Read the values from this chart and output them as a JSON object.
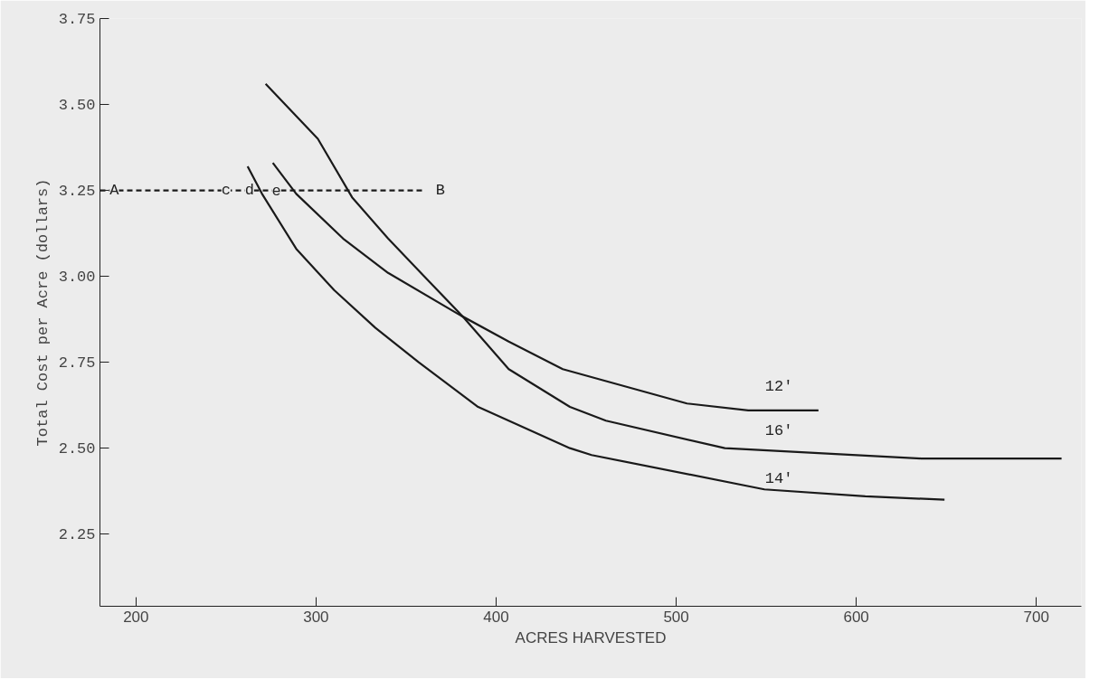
{
  "chart_data": {
    "type": "line",
    "xlabel": "ACRES HARVESTED",
    "ylabel": "Total Cost per Acre (dollars)",
    "xlim": [
      180,
      725
    ],
    "xticks": [
      200,
      300,
      400,
      500,
      600,
      700
    ],
    "ylim": [
      2.04,
      3.75
    ],
    "yticks": [
      2.25,
      {
        "value": 2.5,
        "label": "2.50"
      },
      2.75,
      {
        "value": 3.0,
        "label": "3.00"
      },
      3.25,
      {
        "value": 3.5,
        "label": "3.50"
      },
      3.75
    ],
    "grid": false,
    "marker": "none",
    "line_style": "solid",
    "series": [
      {
        "color": "#1a1a1a",
        "x": [
          262,
          270,
          289,
          310,
          333,
          357,
          390,
          441,
          453,
          549,
          605,
          649
        ],
        "values": [
          3.32,
          3.24,
          3.08,
          2.96,
          2.85,
          2.75,
          2.62,
          2.5,
          2.48,
          2.38,
          2.36,
          2.35
        ]
      },
      {
        "color": "#1a1a1a",
        "x": [
          276,
          289,
          315,
          340,
          379,
          407,
          437,
          506,
          540,
          579
        ],
        "values": [
          3.33,
          3.24,
          3.11,
          3.01,
          2.89,
          2.81,
          2.73,
          2.63,
          2.61,
          2.61
        ]
      },
      {
        "color": "#1a1a1a",
        "x": [
          272,
          301,
          320,
          340,
          360,
          382,
          407,
          441,
          461,
          527,
          636,
          714
        ],
        "values": [
          3.56,
          3.4,
          3.23,
          3.11,
          3.0,
          2.88,
          2.73,
          2.62,
          2.58,
          2.5,
          2.47,
          2.47
        ]
      },
      {
        "color": "#1a1a1a",
        "line_style": "dashed",
        "x": [
          180,
          360
        ],
        "values": [
          3.25,
          3.25
        ]
      }
    ],
    "annotations": [
      {
        "text": "A",
        "x": 188,
        "y": 3.25
      },
      {
        "text": "c",
        "x": 250,
        "y": 3.25
      },
      {
        "text": "d",
        "x": 263,
        "y": 3.25
      },
      {
        "text": "e",
        "x": 278,
        "y": 3.25
      },
      {
        "text": "B",
        "x": 369,
        "y": 3.25
      },
      {
        "text": "12'",
        "x": 557,
        "y": 2.68
      },
      {
        "text": "16'",
        "x": 557,
        "y": 2.55
      },
      {
        "text": "14'",
        "x": 557,
        "y": 2.41
      }
    ]
  }
}
